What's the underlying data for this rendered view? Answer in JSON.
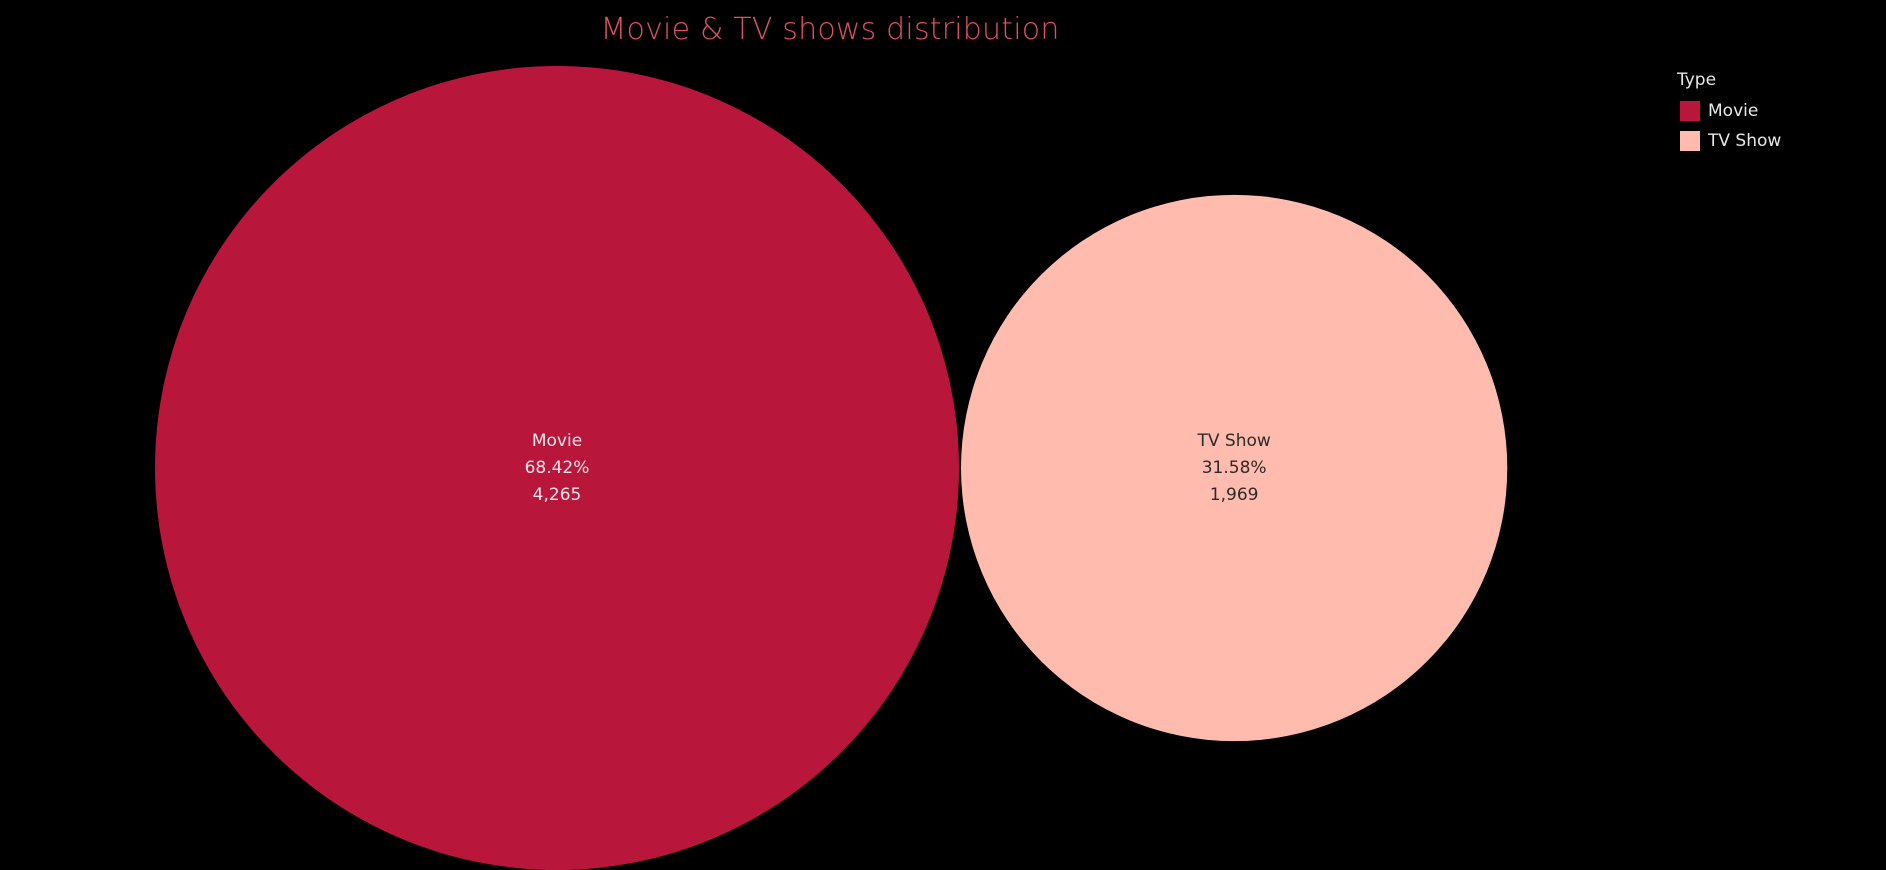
{
  "chart_data": {
    "type": "bubble",
    "title": "Movie & TV shows distribution",
    "title_color": "#e05260",
    "background": "#000000",
    "legend": {
      "title": "Type",
      "placement": "top-right",
      "items": [
        {
          "label": "Movie",
          "color": "#b8173b"
        },
        {
          "label": "TV Show",
          "color": "#ffbcae"
        }
      ]
    },
    "series": [
      {
        "name": "Movie",
        "percent_label": "68.42%",
        "count_label": "4,265",
        "value": 4265,
        "share": 0.6842,
        "color": "#b8173b",
        "text_color": "#f2e6e8"
      },
      {
        "name": "TV Show",
        "percent_label": "31.58%",
        "count_label": "1,969",
        "value": 1969,
        "share": 0.3158,
        "color": "#ffbcae",
        "text_color": "#2a2a2a"
      }
    ]
  }
}
